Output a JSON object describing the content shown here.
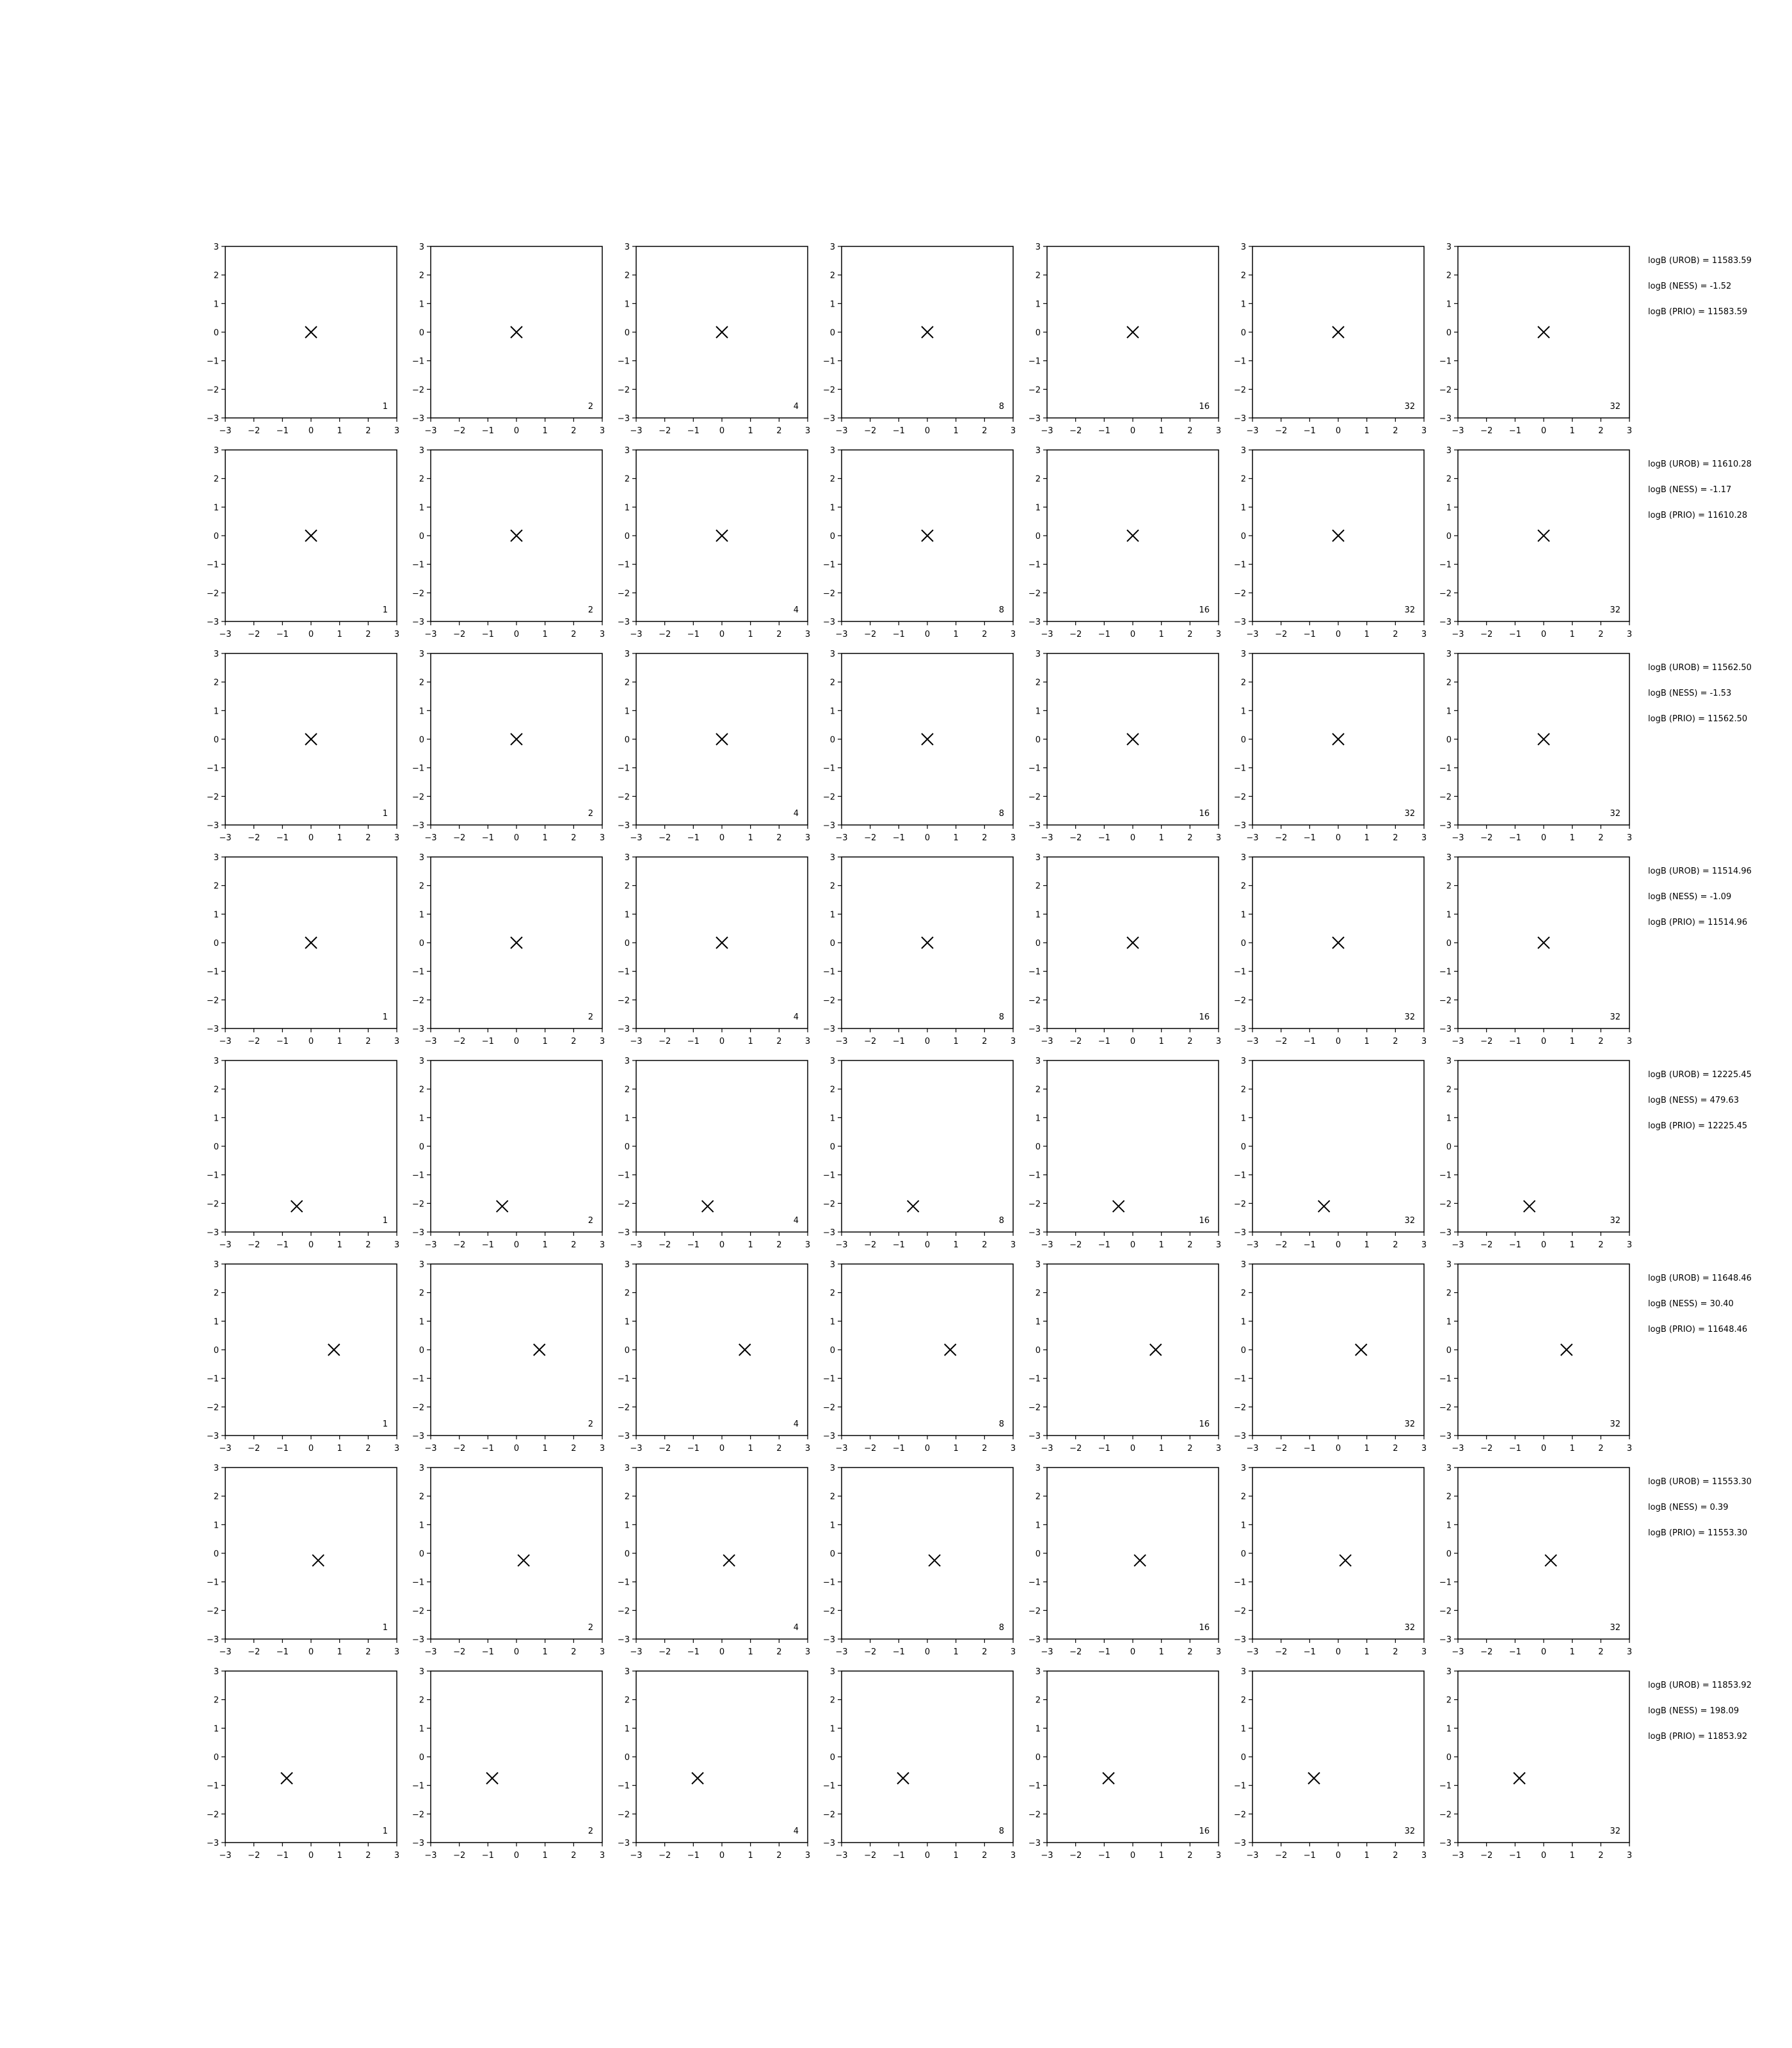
{
  "colors": {
    "green_fill": "#c8efc8",
    "grey_fill": "#d6d6d6",
    "blue_contour": "#1010dd",
    "red_contour": "#dd1010",
    "marker": "#000000"
  },
  "chart_data": {
    "type": "contour-grid",
    "rows": 8,
    "cols": 7,
    "xlim": [
      -3,
      3
    ],
    "ylim": [
      -3,
      3
    ],
    "ticks": [
      "−3",
      "−2",
      "−1",
      "0",
      "1",
      "2",
      "3"
    ],
    "tick_values": [
      -3,
      -2,
      -1,
      0,
      1,
      2,
      3
    ],
    "grid": false,
    "col_labels": [
      "1",
      "2",
      "4",
      "8",
      "16",
      "32",
      "32"
    ],
    "col_styles": [
      "green",
      "green",
      "green",
      "green",
      "green",
      "green",
      "none"
    ],
    "log_labels": [
      [
        "logB (UROB) = 11583.59",
        "logB (NESS) = -1.52",
        "logB (PRIO) = 11583.59"
      ],
      [
        "logB (UROB) = 11610.28",
        "logB (NESS) = -1.17",
        "logB (PRIO) = 11610.28"
      ],
      [
        "logB (UROB) = 11562.50",
        "logB (NESS) = -1.53",
        "logB (PRIO) = 11562.50"
      ],
      [
        "logB (UROB) = 11514.96",
        "logB (NESS) = -1.09",
        "logB (PRIO) = 11514.96"
      ],
      [
        "logB (UROB) = 12225.45",
        "logB (NESS) = 479.63",
        "logB (PRIO) = 12225.45"
      ],
      [
        "logB (UROB) = 11648.46",
        "logB (NESS) = 30.40",
        "logB (PRIO) = 11648.46"
      ],
      [
        "logB (UROB) = 11553.30",
        "logB (NESS) = 0.39",
        "logB (PRIO) = 11553.30"
      ],
      [
        "logB (UROB) = 11853.92",
        "logB (NESS) = 198.09",
        "logB (PRIO) = 11853.92"
      ]
    ],
    "markers": [
      [
        [
          0,
          0
        ]
      ],
      [
        [
          0,
          0
        ]
      ],
      [
        [
          0,
          0
        ]
      ],
      [
        [
          0,
          0
        ]
      ],
      [
        [
          -0.5,
          -2.1
        ]
      ],
      [
        [
          0.8,
          0.0
        ]
      ],
      [
        [
          0.25,
          -0.25
        ]
      ],
      [
        [
          -0.85,
          -0.75
        ]
      ]
    ]
  }
}
